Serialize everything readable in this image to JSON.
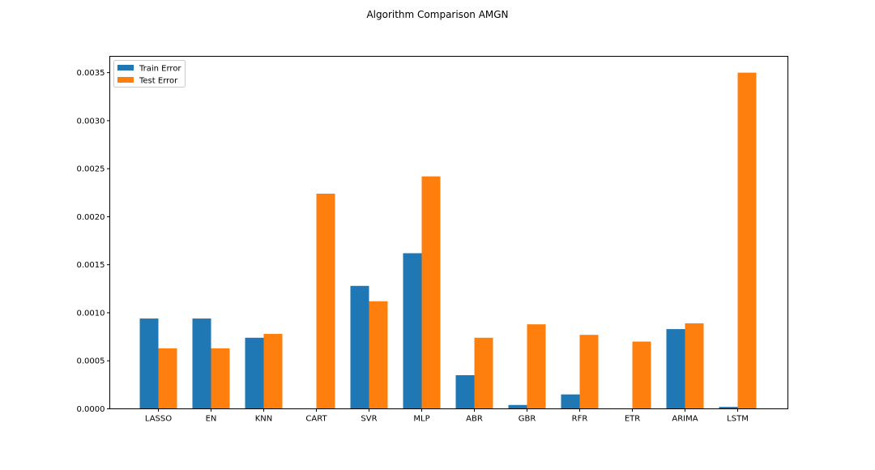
{
  "chart_data": {
    "type": "bar",
    "title": "Algorithm Comparison AMGN",
    "xlabel": "",
    "ylabel": "",
    "categories": [
      "LASSO",
      "EN",
      "KNN",
      "CART",
      "SVR",
      "MLP",
      "ABR",
      "GBR",
      "RFR",
      "ETR",
      "ARIMA",
      "LSTM"
    ],
    "series": [
      {
        "name": "Train Error",
        "color": "#1f77b4",
        "values": [
          0.00094,
          0.00094,
          0.00074,
          0.0,
          0.00128,
          0.00162,
          0.00035,
          4e-05,
          0.00015,
          0.0,
          0.00083,
          2e-05
        ]
      },
      {
        "name": "Test Error",
        "color": "#ff7f0e",
        "values": [
          0.00063,
          0.00063,
          0.00078,
          0.00224,
          0.00112,
          0.00242,
          0.00074,
          0.00088,
          0.00077,
          0.0007,
          0.00089,
          0.0035
        ]
      }
    ],
    "ylim": [
      0,
      0.00367
    ],
    "yticks": [
      "0.0000",
      "0.0005",
      "0.0010",
      "0.0015",
      "0.0020",
      "0.0025",
      "0.0030",
      "0.0035"
    ],
    "ytick_values": [
      0,
      0.0005,
      0.001,
      0.0015,
      0.002,
      0.0025,
      0.003,
      0.0035
    ],
    "grid": false,
    "legend_position": "top-left"
  }
}
